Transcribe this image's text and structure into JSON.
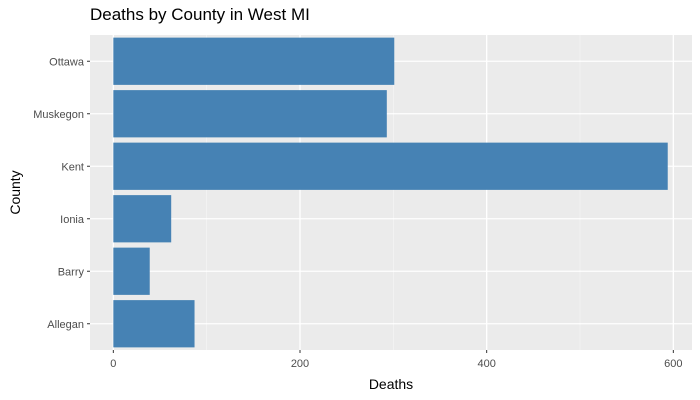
{
  "chart_data": {
    "type": "bar",
    "orientation": "horizontal",
    "title": "Deaths by County in West MI",
    "xlabel": "Deaths",
    "ylabel": "County",
    "categories": [
      "Allegan",
      "Barry",
      "Ionia",
      "Kent",
      "Muskegon",
      "Ottawa"
    ],
    "values": [
      87,
      39,
      62,
      594,
      293,
      301
    ],
    "xlim": [
      -25,
      620
    ],
    "x_ticks": [
      0,
      200,
      400,
      600
    ],
    "grid": true,
    "colors": {
      "bar": "#4682b4",
      "panel": "#ebebeb",
      "grid_major": "#ffffff",
      "grid_minor": "#f5f5f5"
    }
  }
}
